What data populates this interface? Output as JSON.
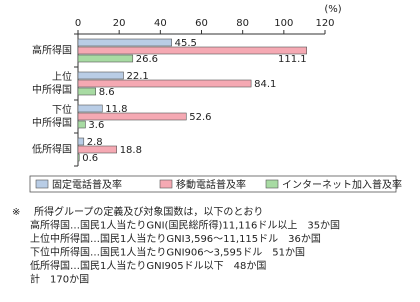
{
  "chart_data": {
    "type": "hbar",
    "unit_label": "(%)",
    "categories": [
      [
        "高所得国"
      ],
      [
        "上位",
        "中所得国"
      ],
      [
        "下位",
        "中所得国"
      ],
      [
        "低所得国"
      ]
    ],
    "series": [
      {
        "name": "固定電話普及率",
        "color": "#b9cde6",
        "values": [
          45.5,
          22.1,
          11.8,
          2.8
        ]
      },
      {
        "name": "移動電話普及率",
        "color": "#f5a9b3",
        "values": [
          111.1,
          84.1,
          52.6,
          18.8
        ]
      },
      {
        "name": "インターネット加入普及率",
        "color": "#a8dba3",
        "values": [
          26.6,
          8.6,
          3.6,
          0.6
        ]
      }
    ],
    "xlim": [
      0,
      120
    ],
    "xticks": [
      0,
      20,
      40,
      60,
      80,
      100,
      120
    ]
  },
  "notes": {
    "mark": "※",
    "lines": [
      "所得グループの定義及び対象国数は，以下のとおり",
      "高所得国…国民1人当たりGNI(国民総所得)11,116ドル以上　35か国",
      "上位中所得国…国民1人当たりGNI3,596～11,115ドル　36か国",
      "下位中所得国…国民1人当たりGNI906～3,595ドル　51か国",
      "低所得国…国民1人当たりGNI905ドル以下　48か国",
      "計　170か国"
    ]
  }
}
